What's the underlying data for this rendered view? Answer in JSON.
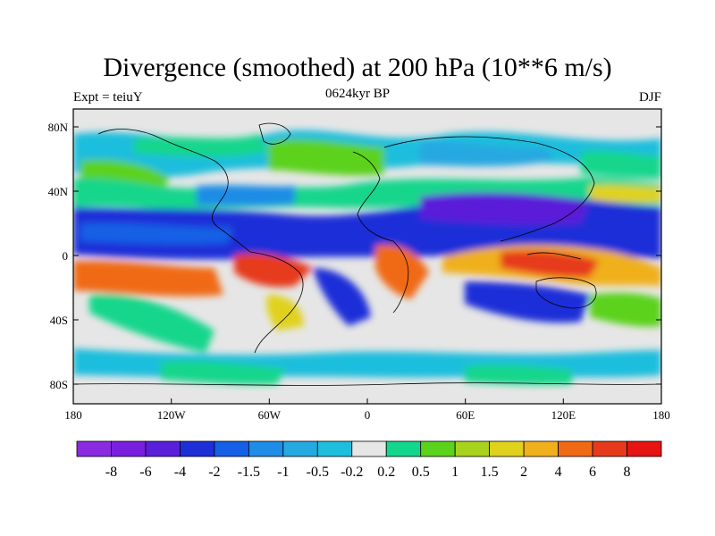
{
  "title": "Divergence (smoothed) at 200 hPa (10**6 m/s)",
  "subtitle_left": "Expt = teiuY",
  "subtitle_center": "0624kyr BP",
  "subtitle_right": "DJF",
  "lat_ticks": [
    "80N",
    "40N",
    "0",
    "40S",
    "80S"
  ],
  "lon_ticks": [
    "180",
    "120W",
    "60W",
    "0",
    "60E",
    "120E",
    "180"
  ],
  "colorbar": {
    "labels": [
      "-8",
      "-6",
      "-4",
      "-2",
      "-1.5",
      "-1",
      "-0.5",
      "-0.2",
      "0.2",
      "0.5",
      "1",
      "1.5",
      "2",
      "4",
      "6",
      "8"
    ],
    "colors": [
      "#8a2be2",
      "#7a1fe0",
      "#5a1fd8",
      "#1f2fd8",
      "#1560e6",
      "#1f8ce6",
      "#26a8e0",
      "#1fbedd",
      "#e6e6e6",
      "#12d68c",
      "#5bd21c",
      "#a8d31c",
      "#e0d21c",
      "#f0b01c",
      "#f06a16",
      "#e63a1a",
      "#e61414"
    ]
  }
}
